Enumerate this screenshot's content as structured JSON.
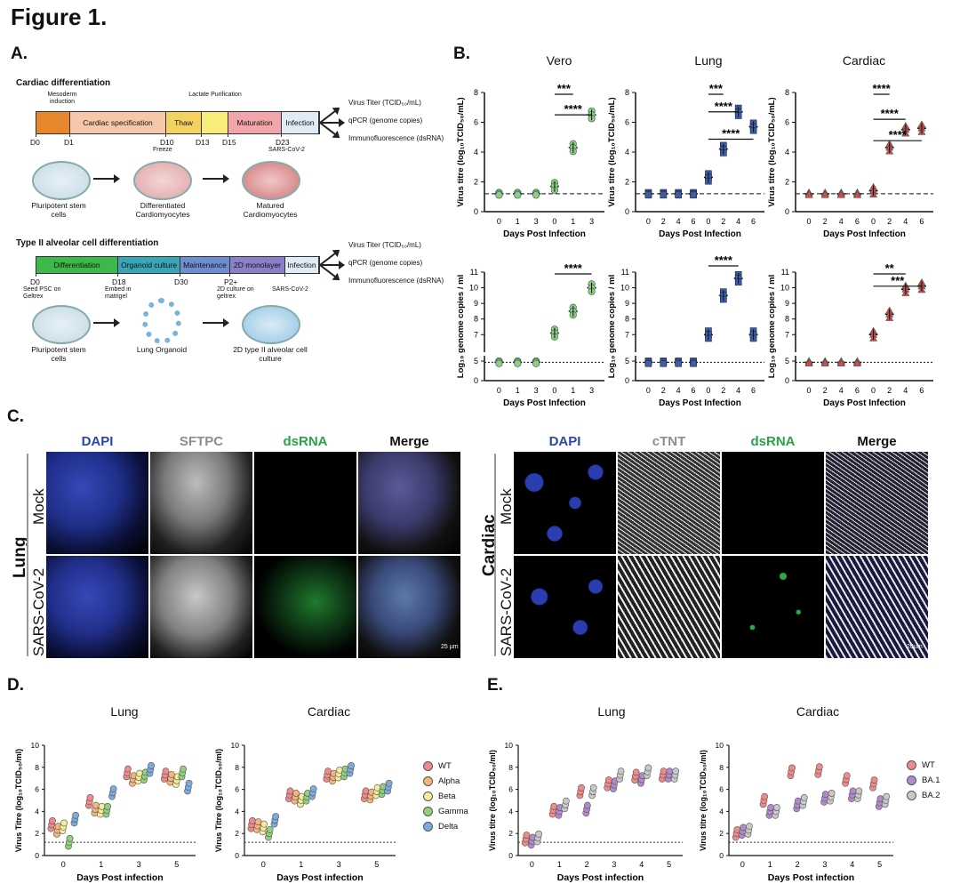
{
  "figure_title": "Figure 1.",
  "panel_labels": {
    "a": "A.",
    "b": "B.",
    "c": "C.",
    "d": "D.",
    "e": "E."
  },
  "panel_a": {
    "cardiac": {
      "title": "Cardiac differentiation",
      "above_labels": [
        {
          "text": "Mesoderm induction",
          "pos": "mid"
        },
        {
          "text": "Lactate Purification",
          "pos": "mid"
        }
      ],
      "segments": [
        {
          "label": "",
          "color": "#e8862e"
        },
        {
          "label": "Cardiac specification",
          "color": "#f6c7a8"
        },
        {
          "label": "Thaw",
          "color": "#f4d25f"
        },
        {
          "label": "",
          "color": "#f8ec7a"
        },
        {
          "label": "Maturation",
          "color": "#f2a6aa"
        },
        {
          "label": "Infection",
          "color": "#e0ecf5"
        }
      ],
      "ticks": [
        "D0",
        "D1",
        "D10",
        "D13",
        "D15",
        "D23"
      ],
      "tick_notes": [
        "",
        "",
        "Freeze",
        "",
        "",
        "SARS-CoV-2"
      ],
      "outputs": [
        "Virus Titer (TCID₅₀/mL)",
        "qPCR (genome copies)",
        "Immunofluorescence (dsRNA)"
      ],
      "stages": [
        "Pluripotent stem cells",
        "Differentiated Cardiomyocytes",
        "Matured Cardiomyocytes"
      ]
    },
    "lung": {
      "title": "Type II alveolar cell differentiation",
      "segments": [
        {
          "label": "Differentiation",
          "color": "#3cb94a"
        },
        {
          "label": "Organoid culture",
          "color": "#3aa5b5"
        },
        {
          "label": "Maintenance",
          "color": "#6d8fd1"
        },
        {
          "label": "2D monolayer",
          "color": "#8a80c9"
        },
        {
          "label": "Infection",
          "color": "#e0ecf5"
        }
      ],
      "ticks": [
        "D0",
        "D18",
        "D30",
        "P2+",
        ""
      ],
      "tick_notes": [
        "Seed PSC on Geltrex",
        "Embed in matrigel",
        "",
        "2D culture on geltrex",
        "SARS-CoV-2"
      ],
      "outputs": [
        "Virus Titer (TCID₅₀/mL)",
        "qPCR (genome copies)",
        "Immunofluorescence (dsRNA)"
      ],
      "stages": [
        "Pluripotent stem cells",
        "Lung Organoid",
        "2D type II alveolar cell culture"
      ]
    }
  },
  "panel_b": {
    "col_titles": [
      "Vero",
      "Lung",
      "Cardiac"
    ],
    "xlabel": "Days Post Infection",
    "ylabel_top": "Virus titre (log₁₀TCID₅₀/mL)",
    "ylabel_bottom": "Log₁₀ genome copies / ml",
    "sig": {
      "s3": "***",
      "s4": "****",
      "s2": "**"
    }
  },
  "panel_c": {
    "left_side": "Lung",
    "right_side": "Cardiac",
    "left_headers": [
      {
        "t": "DAPI",
        "c": "#2b46a8"
      },
      {
        "t": "SFTPC",
        "c": "#8d8d8d"
      },
      {
        "t": "dsRNA",
        "c": "#2aa24a"
      },
      {
        "t": "Merge",
        "c": "#111111"
      }
    ],
    "right_headers": [
      {
        "t": "DAPI",
        "c": "#2b46a8"
      },
      {
        "t": "cTNT",
        "c": "#8d8d8d"
      },
      {
        "t": "dsRNA",
        "c": "#2aa24a"
      },
      {
        "t": "Merge",
        "c": "#111111"
      }
    ],
    "rows": [
      "Mock",
      "SARS-CoV-2"
    ],
    "scale_left": "25 µm",
    "scale_right": "20µm"
  },
  "panel_d": {
    "titles": [
      "Lung",
      "Cardiac"
    ],
    "xlabel": "Days Post infection",
    "ylabel": "Virus Titre (log₁₀TCID₅₀/ml)",
    "legend": [
      {
        "name": "WT",
        "color": "#f08a8a"
      },
      {
        "name": "Alpha",
        "color": "#f5b47c"
      },
      {
        "name": "Beta",
        "color": "#f4ec9a"
      },
      {
        "name": "Gamma",
        "color": "#8fcf7d"
      },
      {
        "name": "Delta",
        "color": "#7ea9dc"
      }
    ]
  },
  "panel_e": {
    "titles": [
      "Lung",
      "Cardiac"
    ],
    "xlabel": "Days Post infection",
    "ylabel": "Virus titre (log₁₀TCID₅₀/ml)",
    "legend": [
      {
        "name": "WT",
        "color": "#f08a8a"
      },
      {
        "name": "BA.1",
        "color": "#b08acb"
      },
      {
        "name": "BA.2",
        "color": "#c8c8c8"
      }
    ]
  },
  "chart_data": [
    {
      "id": "b-vero-titre",
      "type": "scatter",
      "title": "Vero",
      "xlabel": "Days Post Infection",
      "ylabel": "Virus titre (log10TCID50/mL)",
      "categories": [
        "0",
        "1",
        "3",
        "0",
        "1",
        "3"
      ],
      "values": [
        1.2,
        1.2,
        1.2,
        1.7,
        4.3,
        6.5
      ],
      "ylim": [
        0,
        8
      ],
      "yticks": [
        0,
        2,
        4,
        6,
        8
      ],
      "lod": 1.2,
      "color": "#8fcf7d"
    },
    {
      "id": "b-lung-titre",
      "type": "scatter",
      "title": "Lung",
      "xlabel": "Days Post Infection",
      "ylabel": "Virus titre (log10TCID50/mL)",
      "categories": [
        "0",
        "2",
        "4",
        "6",
        "0",
        "2",
        "4",
        "6"
      ],
      "values": [
        1.2,
        1.2,
        1.2,
        1.2,
        2.3,
        4.2,
        6.7,
        5.7
      ],
      "ylim": [
        0,
        8
      ],
      "yticks": [
        0,
        2,
        4,
        6,
        8
      ],
      "lod": 1.2,
      "color": "#3a5fa8"
    },
    {
      "id": "b-cardiac-titre",
      "type": "scatter",
      "title": "Cardiac",
      "xlabel": "Days Post Infection",
      "ylabel": "Virus titre (log10TCID50/mL)",
      "categories": [
        "0",
        "2",
        "4",
        "6",
        "0",
        "2",
        "4",
        "6"
      ],
      "values": [
        1.2,
        1.2,
        1.2,
        1.2,
        1.4,
        4.3,
        5.5,
        5.6
      ],
      "ylim": [
        0,
        8
      ],
      "yticks": [
        0,
        2,
        4,
        6,
        8
      ],
      "lod": 1.2,
      "color": "#d84a4a"
    },
    {
      "id": "b-vero-gc",
      "type": "scatter",
      "xlabel": "Days Post Infection",
      "ylabel": "Log10 genome copies / ml",
      "categories": [
        "0",
        "1",
        "3",
        "0",
        "1",
        "3"
      ],
      "values": [
        4.7,
        4.7,
        4.7,
        7.1,
        8.5,
        10
      ],
      "ylim": [
        0,
        11
      ],
      "yticks": [
        0,
        5,
        7,
        8,
        9,
        10,
        11
      ],
      "color": "#8fcf7d"
    },
    {
      "id": "b-lung-gc",
      "type": "scatter",
      "xlabel": "Days Post Infection",
      "ylabel": "Log10 genome copies / ml",
      "categories": [
        "0",
        "2",
        "4",
        "6",
        "0",
        "2",
        "4",
        "6"
      ],
      "values": [
        4.7,
        4.7,
        4.7,
        4.7,
        7,
        9.5,
        10.6,
        7
      ],
      "ylim": [
        0,
        11
      ],
      "yticks": [
        0,
        5,
        7,
        8,
        9,
        10,
        11
      ],
      "color": "#3a5fa8"
    },
    {
      "id": "b-cardiac-gc",
      "type": "scatter",
      "xlabel": "Days Post Infection",
      "ylabel": "Log10 genome copies / ml",
      "categories": [
        "0",
        "2",
        "4",
        "6",
        "0",
        "2",
        "4",
        "6"
      ],
      "values": [
        4.7,
        4.7,
        4.7,
        4.7,
        7,
        8.3,
        9.9,
        10.1
      ],
      "ylim": [
        0,
        11
      ],
      "yticks": [
        0,
        5,
        7,
        8,
        9,
        10,
        11
      ],
      "color": "#d84a4a"
    },
    {
      "id": "d-lung",
      "type": "scatter",
      "title": "Lung",
      "xlabel": "Days Post infection",
      "categories": [
        "0",
        "1",
        "3",
        "5"
      ],
      "series": [
        {
          "name": "WT",
          "values": [
            2.8,
            4.9,
            7.5,
            7.3
          ]
        },
        {
          "name": "Alpha",
          "values": [
            2.3,
            4.2,
            6.9,
            7.0
          ]
        },
        {
          "name": "Beta",
          "values": [
            2.6,
            4.1,
            7.1,
            6.8
          ]
        },
        {
          "name": "Gamma",
          "values": [
            1.2,
            4.1,
            7.2,
            7.5
          ]
        },
        {
          "name": "Delta",
          "values": [
            3.3,
            5.7,
            7.8,
            6.2
          ]
        }
      ],
      "ylim": [
        0,
        10
      ]
    },
    {
      "id": "d-cardiac",
      "type": "scatter",
      "title": "Cardiac",
      "xlabel": "Days Post infection",
      "categories": [
        "0",
        "1",
        "3",
        "5"
      ],
      "series": [
        {
          "name": "WT",
          "values": [
            2.8,
            5.5,
            7.3,
            5.5
          ]
        },
        {
          "name": "Alpha",
          "values": [
            2.7,
            5.3,
            7.1,
            5.4
          ]
        },
        {
          "name": "Beta",
          "values": [
            2.5,
            5.0,
            7.4,
            5.8
          ]
        },
        {
          "name": "Gamma",
          "values": [
            2.0,
            5.3,
            7.5,
            5.9
          ]
        },
        {
          "name": "Delta",
          "values": [
            3.2,
            5.7,
            7.8,
            6.2
          ]
        }
      ],
      "ylim": [
        0,
        10
      ]
    },
    {
      "id": "e-lung",
      "type": "scatter",
      "title": "Lung",
      "xlabel": "Days Post infection",
      "categories": [
        "0",
        "1",
        "2",
        "3",
        "4",
        "5"
      ],
      "series": [
        {
          "name": "WT",
          "values": [
            1.5,
            4.1,
            5.8,
            6.5,
            7.2,
            7.3
          ]
        },
        {
          "name": "BA.1",
          "values": [
            1.3,
            4.0,
            4.2,
            6.4,
            6.9,
            7.3
          ]
        },
        {
          "name": "BA.2",
          "values": [
            1.6,
            4.6,
            5.8,
            7.3,
            7.6,
            7.3
          ]
        }
      ],
      "ylim": [
        0,
        10
      ]
    },
    {
      "id": "e-cardiac",
      "type": "scatter",
      "title": "Cardiac",
      "xlabel": "Days Post infection",
      "categories": [
        "0",
        "1",
        "2",
        "3",
        "4",
        "5"
      ],
      "series": [
        {
          "name": "WT",
          "values": [
            2.0,
            5.0,
            7.6,
            7.7,
            6.9,
            6.5
          ]
        },
        {
          "name": "BA.1",
          "values": [
            2.2,
            4.0,
            4.6,
            5.2,
            5.5,
            4.8
          ]
        },
        {
          "name": "BA.2",
          "values": [
            2.3,
            4.0,
            4.9,
            5.3,
            5.5,
            5.0
          ]
        }
      ],
      "ylim": [
        0,
        10
      ]
    }
  ]
}
